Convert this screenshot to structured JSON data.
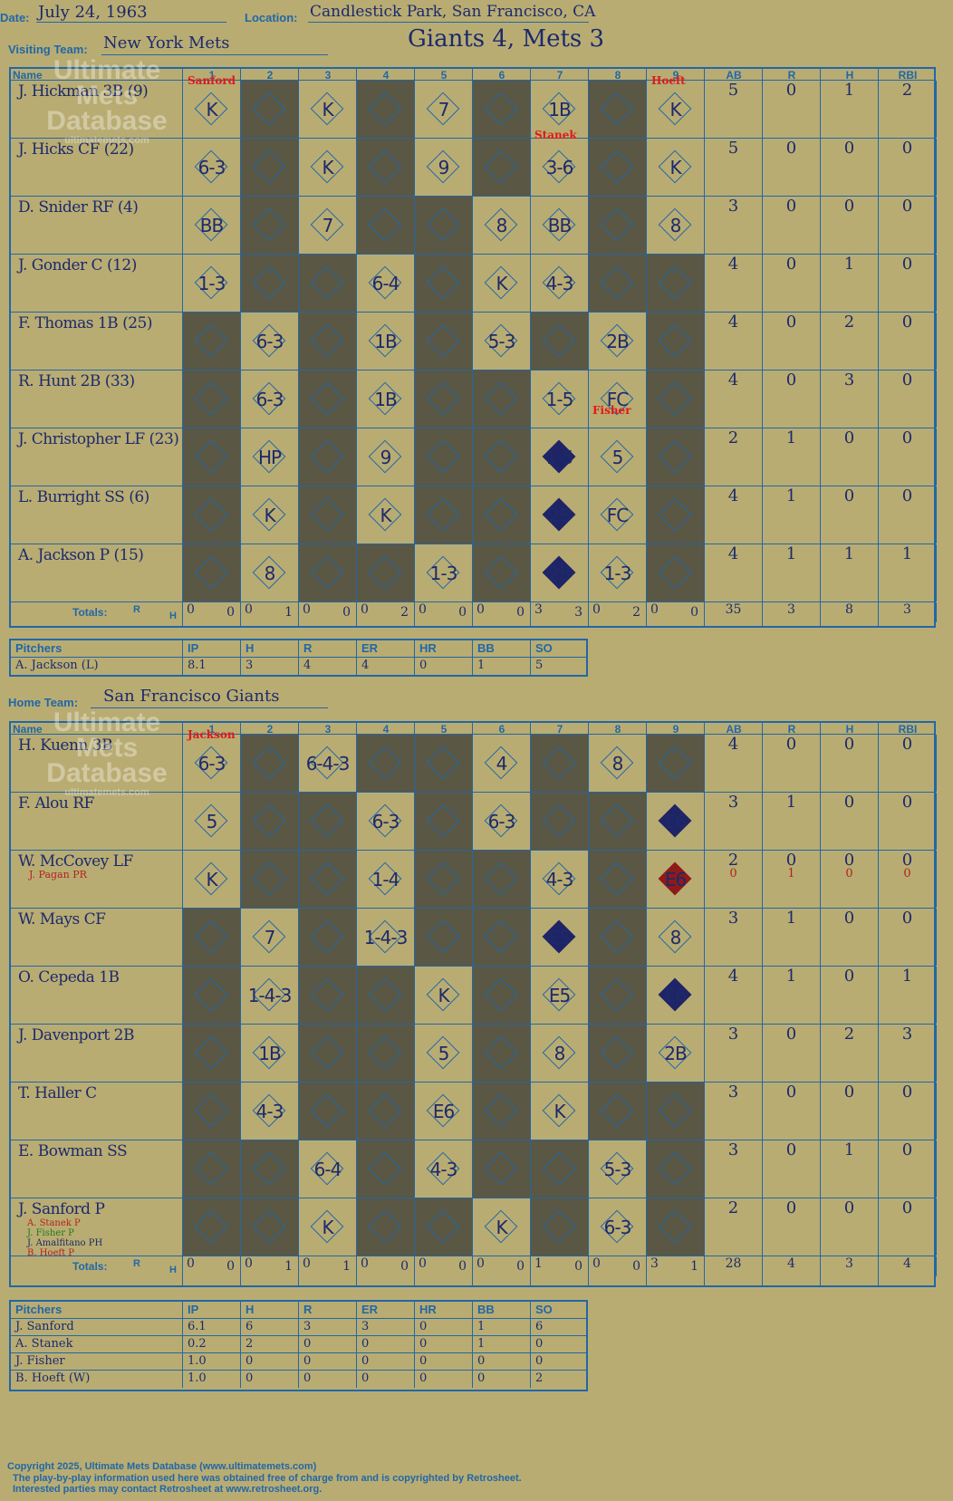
{
  "header": {
    "date_label": "Date:",
    "date": "July 24, 1963",
    "location_label": "Location:",
    "location": "Candlestick Park, San Francisco, CA",
    "visiting_label": "Visiting Team:",
    "visiting_team": "New York Mets",
    "result": "Giants 4, Mets 3",
    "home_label": "Home Team:",
    "home_team": "San Francisco Giants"
  },
  "columns": {
    "name": "Name",
    "innings": [
      "1",
      "2",
      "3",
      "4",
      "5",
      "6",
      "7",
      "8",
      "9"
    ],
    "stats": [
      "AB",
      "R",
      "H",
      "RBI"
    ]
  },
  "watermark": {
    "line1": "Ultimate",
    "line2": "Mets",
    "line3": "Database",
    "url": "ultimatemets.com"
  },
  "totals_label": "Totals:",
  "totals_rh": {
    "r": "R",
    "h": "H"
  },
  "visitors": {
    "batters": [
      {
        "name": "J. Hickman 3B (9)",
        "ab": "5",
        "r": "0",
        "h": "1",
        "rbi": "2"
      },
      {
        "name": "J. Hicks CF (22)",
        "ab": "5",
        "r": "0",
        "h": "0",
        "rbi": "0"
      },
      {
        "name": "D. Snider RF (4)",
        "ab": "3",
        "r": "0",
        "h": "0",
        "rbi": "0"
      },
      {
        "name": "J. Gonder C (12)",
        "ab": "4",
        "r": "0",
        "h": "1",
        "rbi": "0"
      },
      {
        "name": "F. Thomas 1B (25)",
        "ab": "4",
        "r": "0",
        "h": "2",
        "rbi": "0"
      },
      {
        "name": "R. Hunt 2B (33)",
        "ab": "4",
        "r": "0",
        "h": "3",
        "rbi": "0"
      },
      {
        "name": "J. Christopher LF (23)",
        "ab": "2",
        "r": "1",
        "h": "0",
        "rbi": "0"
      },
      {
        "name": "L. Burright SS (6)",
        "ab": "4",
        "r": "1",
        "h": "0",
        "rbi": "0"
      },
      {
        "name": "A. Jackson P (15)",
        "ab": "4",
        "r": "1",
        "h": "1",
        "rbi": "1"
      }
    ],
    "plays": [
      [
        "K",
        "",
        "K",
        "",
        "7",
        "",
        "1B",
        "",
        "K"
      ],
      [
        "6-3",
        "",
        "K",
        "",
        "9",
        "",
        "3-6",
        "",
        "K"
      ],
      [
        "BB",
        "",
        "7",
        "",
        "",
        "8",
        "BB",
        "",
        "8"
      ],
      [
        "1-3",
        "",
        "",
        "6-4",
        "",
        "K",
        "4-3",
        "",
        ""
      ],
      [
        "",
        "6-3",
        "",
        "1B",
        "",
        "5-3",
        "",
        "2B",
        ""
      ],
      [
        "",
        "6-3",
        "",
        "1B",
        "",
        "",
        "1-5",
        "FC",
        ""
      ],
      [
        "",
        "HP",
        "",
        "9",
        "",
        "",
        "1-5",
        "5",
        ""
      ],
      [
        "",
        "K",
        "",
        "K",
        "",
        "",
        "2B",
        "FC",
        ""
      ],
      [
        "",
        "8",
        "",
        "",
        "1-3",
        "",
        "2B",
        "1-3",
        ""
      ]
    ],
    "innings_rh": [
      [
        "0",
        "0"
      ],
      [
        "0",
        "1"
      ],
      [
        "0",
        "0"
      ],
      [
        "0",
        "2"
      ],
      [
        "0",
        "0"
      ],
      [
        "0",
        "0"
      ],
      [
        "3",
        "3"
      ],
      [
        "0",
        "2"
      ],
      [
        "0",
        "0"
      ]
    ],
    "totals": {
      "ab": "35",
      "r": "3",
      "h": "8",
      "rbi": "3"
    },
    "pitching_header": [
      "Pitchers",
      "IP",
      "H",
      "R",
      "ER",
      "HR",
      "BB",
      "SO"
    ],
    "pitchers": [
      [
        "A. Jackson (L)",
        "8.1",
        "3",
        "4",
        "4",
        "0",
        "1",
        "5"
      ]
    ]
  },
  "home": {
    "batters": [
      {
        "name": "H. Kuenn 3B",
        "ab": "4",
        "r": "0",
        "h": "0",
        "rbi": "0"
      },
      {
        "name": "F. Alou RF",
        "ab": "3",
        "r": "1",
        "h": "0",
        "rbi": "0"
      },
      {
        "name": "W. McCovey LF",
        "sub": "J. Pagan PR",
        "ab": "2",
        "r": "0",
        "h": "0",
        "rbi": "0",
        "ab2": "0",
        "r2": "1",
        "h2": "0",
        "rbi2": "0"
      },
      {
        "name": "W. Mays CF",
        "ab": "3",
        "r": "1",
        "h": "0",
        "rbi": "0"
      },
      {
        "name": "O. Cepeda 1B",
        "ab": "4",
        "r": "1",
        "h": "0",
        "rbi": "1"
      },
      {
        "name": "J. Davenport 2B",
        "ab": "3",
        "r": "0",
        "h": "2",
        "rbi": "3"
      },
      {
        "name": "T. Haller C",
        "ab": "3",
        "r": "0",
        "h": "0",
        "rbi": "0"
      },
      {
        "name": "E. Bowman SS",
        "ab": "3",
        "r": "0",
        "h": "1",
        "rbi": "0"
      },
      {
        "name": "J. Sanford P",
        "ab": "2",
        "r": "0",
        "h": "0",
        "rbi": "0"
      }
    ],
    "pitcher_subs": [
      "A. Stanek P",
      "J. Fisher P",
      "J. Amalfitano PH",
      "B. Hoeft P"
    ],
    "plays": [
      [
        "6-3",
        "",
        "6-4-3",
        "",
        "",
        "4",
        "",
        "8",
        ""
      ],
      [
        "5",
        "",
        "",
        "6-3",
        "",
        "6-3",
        "",
        "",
        "E6"
      ],
      [
        "K",
        "",
        "",
        "1-4",
        "",
        "",
        "4-3",
        "",
        "E6"
      ],
      [
        "",
        "7",
        "",
        "1-4-3",
        "",
        "",
        "E5",
        "",
        "8"
      ],
      [
        "",
        "1-4-3",
        "",
        "",
        "K",
        "",
        "E5",
        "",
        "E6"
      ],
      [
        "",
        "1B",
        "",
        "",
        "5",
        "",
        "8",
        "",
        "2B"
      ],
      [
        "",
        "4-3",
        "",
        "",
        "E6",
        "",
        "K",
        "",
        ""
      ],
      [
        "",
        "",
        "6-4",
        "",
        "4-3",
        "",
        "",
        "5-3",
        ""
      ],
      [
        "",
        "",
        "K",
        "",
        "",
        "K",
        "",
        "6-3",
        ""
      ]
    ],
    "innings_rh": [
      [
        "0",
        "0"
      ],
      [
        "0",
        "1"
      ],
      [
        "0",
        "1"
      ],
      [
        "0",
        "0"
      ],
      [
        "0",
        "0"
      ],
      [
        "0",
        "0"
      ],
      [
        "1",
        "0"
      ],
      [
        "0",
        "0"
      ],
      [
        "3",
        "1"
      ]
    ],
    "totals": {
      "ab": "28",
      "r": "4",
      "h": "3",
      "rbi": "4"
    },
    "pitching_header": [
      "Pitchers",
      "IP",
      "H",
      "R",
      "ER",
      "HR",
      "BB",
      "SO"
    ],
    "pitchers": [
      [
        "J. Sanford",
        "6.1",
        "6",
        "3",
        "3",
        "0",
        "1",
        "6"
      ],
      [
        "A. Stanek",
        "0.2",
        "2",
        "0",
        "0",
        "0",
        "1",
        "0"
      ],
      [
        "J. Fisher",
        "1.0",
        "0",
        "0",
        "0",
        "0",
        "0",
        "0"
      ],
      [
        "B. Hoeft (W)",
        "1.0",
        "0",
        "0",
        "0",
        "0",
        "0",
        "2"
      ]
    ]
  },
  "pitcher_notes": {
    "v1": "Sanford",
    "v7": "Stanek",
    "v8": "Fisher",
    "v9": "Hoeft",
    "h1": "Jackson"
  },
  "footer": {
    "line1": "Copyright 2025, Ultimate Mets Database (www.ultimatemets.com)",
    "line2": "The play-by-play information used here was obtained free of charge from and is copyrighted by Retrosheet.",
    "line3": "Interested parties may contact Retrosheet at www.retrosheet.org."
  }
}
